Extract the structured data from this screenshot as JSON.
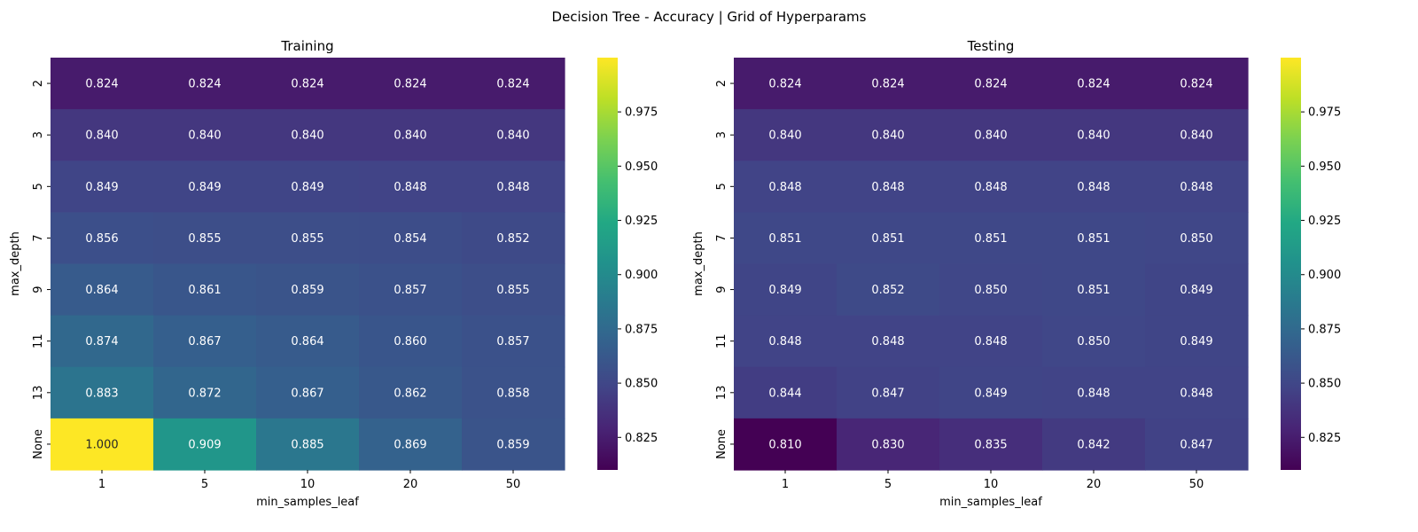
{
  "figure": {
    "suptitle": "Decision Tree - Accuracy | Grid of Hyperparams"
  },
  "chart_data": [
    {
      "type": "heatmap",
      "title": "Training",
      "xlabel": "min_samples_leaf",
      "ylabel": "max_depth",
      "x_categories": [
        "1",
        "5",
        "10",
        "20",
        "50"
      ],
      "y_categories": [
        "2",
        "3",
        "5",
        "7",
        "9",
        "11",
        "13",
        "None"
      ],
      "values": [
        [
          0.824,
          0.824,
          0.824,
          0.824,
          0.824
        ],
        [
          0.84,
          0.84,
          0.84,
          0.84,
          0.84
        ],
        [
          0.849,
          0.849,
          0.849,
          0.848,
          0.848
        ],
        [
          0.856,
          0.855,
          0.855,
          0.854,
          0.852
        ],
        [
          0.864,
          0.861,
          0.859,
          0.857,
          0.855
        ],
        [
          0.874,
          0.867,
          0.864,
          0.86,
          0.857
        ],
        [
          0.883,
          0.872,
          0.867,
          0.862,
          0.858
        ],
        [
          1.0,
          0.909,
          0.885,
          0.869,
          0.859
        ]
      ],
      "colormap": "viridis",
      "vmin": 0.81,
      "vmax": 1.0,
      "colorbar_ticks": [
        "0.825",
        "0.850",
        "0.875",
        "0.900",
        "0.925",
        "0.950",
        "0.975"
      ],
      "annotation_format": "3 decimals"
    },
    {
      "type": "heatmap",
      "title": "Testing",
      "xlabel": "min_samples_leaf",
      "ylabel": "max_depth",
      "x_categories": [
        "1",
        "5",
        "10",
        "20",
        "50"
      ],
      "y_categories": [
        "2",
        "3",
        "5",
        "7",
        "9",
        "11",
        "13",
        "None"
      ],
      "values": [
        [
          0.824,
          0.824,
          0.824,
          0.824,
          0.824
        ],
        [
          0.84,
          0.84,
          0.84,
          0.84,
          0.84
        ],
        [
          0.848,
          0.848,
          0.848,
          0.848,
          0.848
        ],
        [
          0.851,
          0.851,
          0.851,
          0.851,
          0.85
        ],
        [
          0.849,
          0.852,
          0.85,
          0.851,
          0.849
        ],
        [
          0.848,
          0.848,
          0.848,
          0.85,
          0.849
        ],
        [
          0.844,
          0.847,
          0.849,
          0.848,
          0.848
        ],
        [
          0.81,
          0.83,
          0.835,
          0.842,
          0.847
        ]
      ],
      "colormap": "viridis",
      "vmin": 0.81,
      "vmax": 1.0,
      "colorbar_ticks": [
        "0.825",
        "0.850",
        "0.875",
        "0.900",
        "0.925",
        "0.950",
        "0.975"
      ],
      "annotation_format": "3 decimals"
    }
  ]
}
